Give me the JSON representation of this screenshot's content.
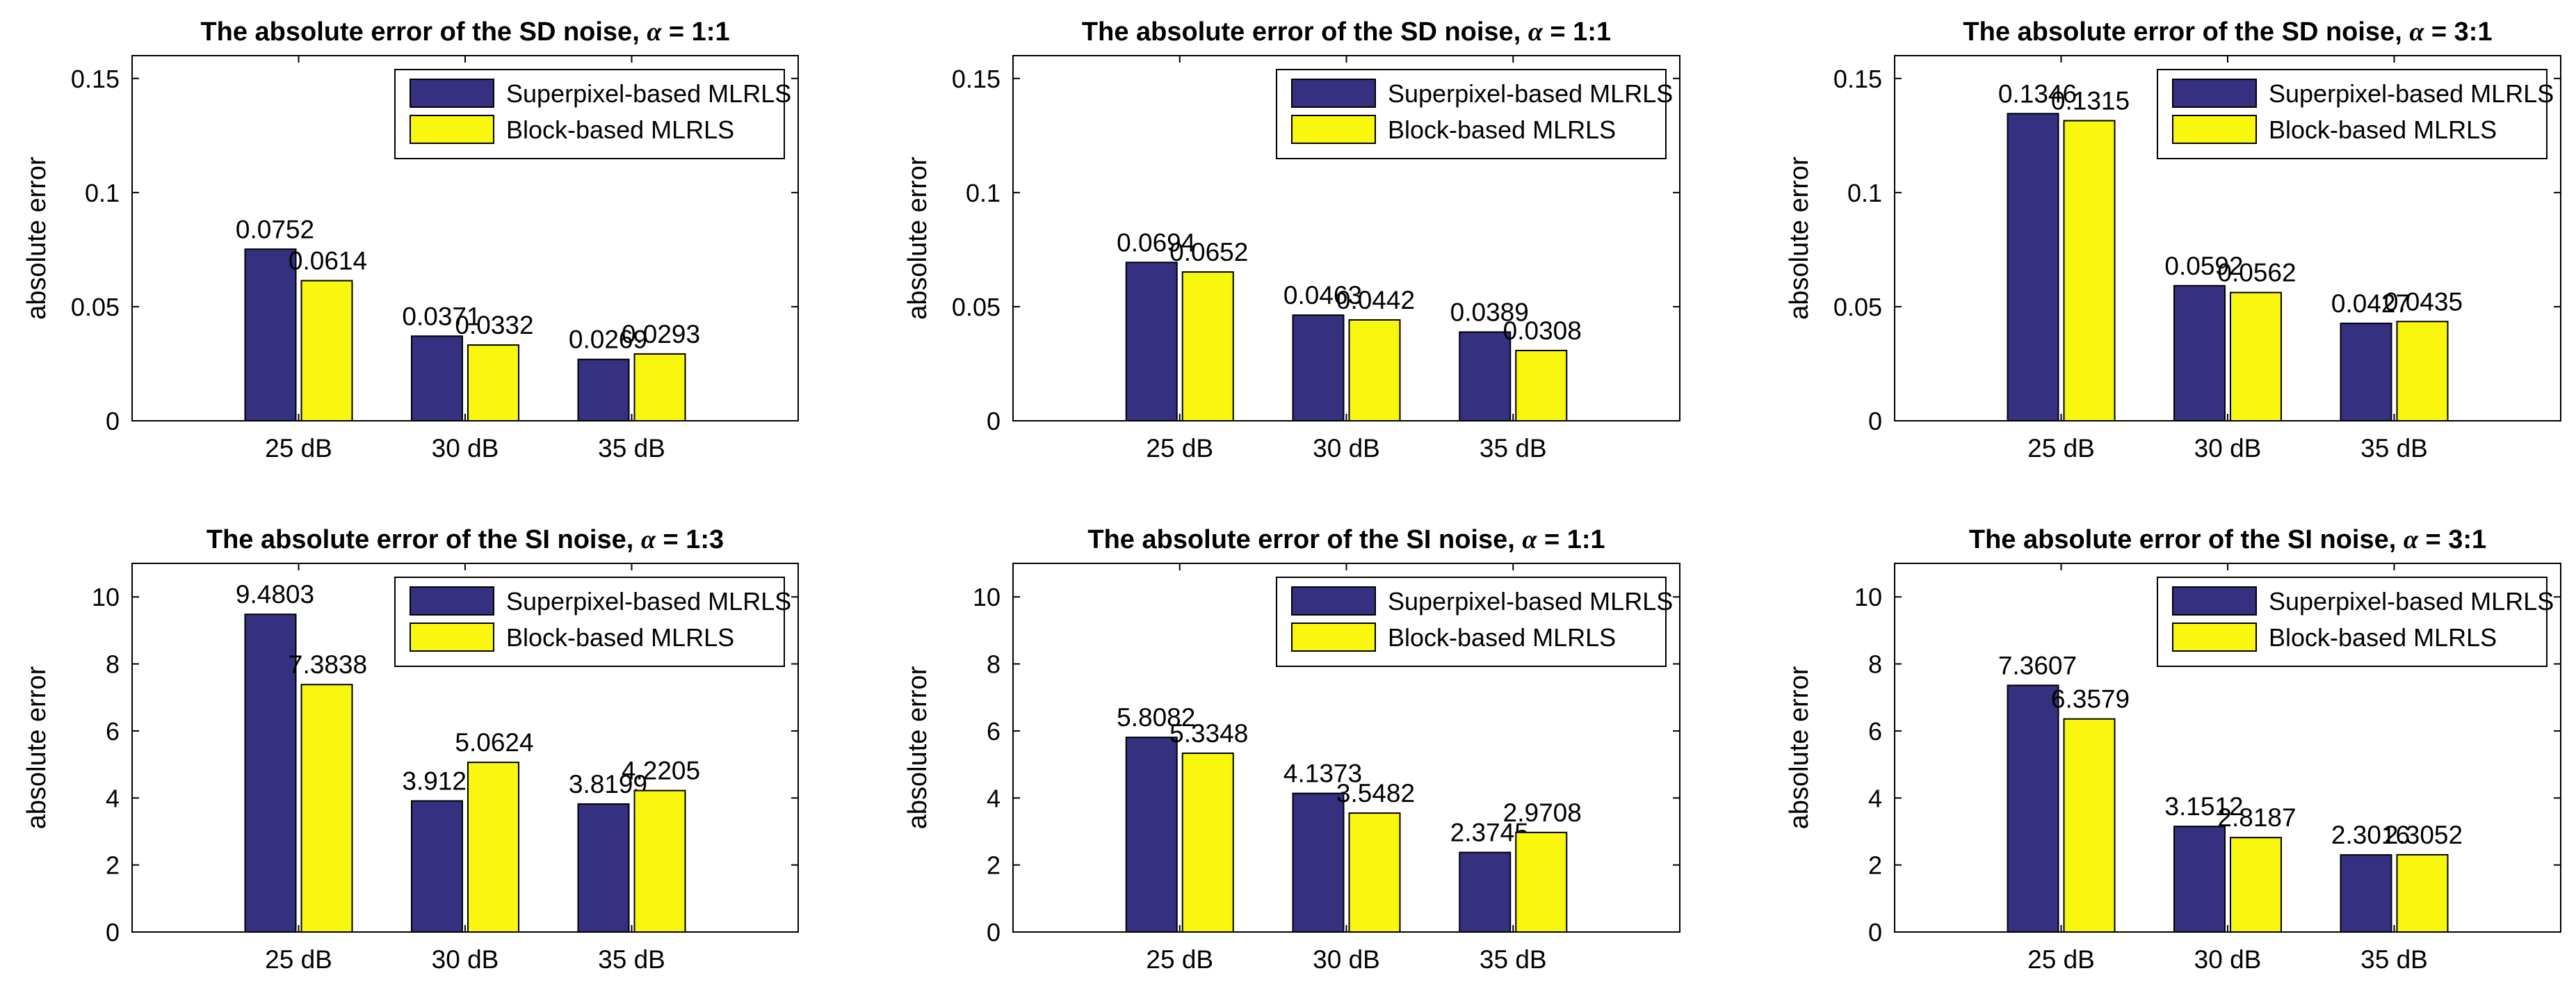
{
  "colors": {
    "superpixel": "#35307f",
    "block": "#f8f70d",
    "axis": "#000000",
    "background": "#ffffff"
  },
  "legend_labels": [
    "Superpixel-based MLRLS",
    "Block-based MLRLS"
  ],
  "chart_data": [
    {
      "type": "bar",
      "title_prefix": "The absolute error of the SD noise, ",
      "title_symbol": "α",
      "title_suffix": " = 1:1",
      "categories": [
        "25 dB",
        "30 dB",
        "35 dB"
      ],
      "series": [
        {
          "name": "Superpixel-based MLRLS",
          "values": [
            0.0752,
            0.0371,
            0.0269
          ],
          "labels": [
            "0.0752",
            "0.0371",
            "0.0269"
          ]
        },
        {
          "name": "Block-based MLRLS",
          "values": [
            0.0614,
            0.0332,
            0.0293
          ],
          "labels": [
            "0.0614",
            "0.0332",
            "0.0293"
          ]
        }
      ],
      "ylabel": "absolute error",
      "ylim": [
        0,
        0.16
      ],
      "yticks": [
        0,
        0.05,
        0.1,
        0.15
      ],
      "yticklabels": [
        "0",
        "0.05",
        "0.1",
        "0.15"
      ],
      "legend": "top-right"
    },
    {
      "type": "bar",
      "title_prefix": "The absolute error of the SD noise, ",
      "title_symbol": "α",
      "title_suffix": " = 1:1",
      "categories": [
        "25 dB",
        "30 dB",
        "35 dB"
      ],
      "series": [
        {
          "name": "Superpixel-based MLRLS",
          "values": [
            0.0694,
            0.0463,
            0.0389
          ],
          "labels": [
            "0.0694",
            "0.0463",
            "0.0389"
          ]
        },
        {
          "name": "Block-based MLRLS",
          "values": [
            0.0652,
            0.0442,
            0.0308
          ],
          "labels": [
            "0.0652",
            "0.0442",
            "0.0308"
          ]
        }
      ],
      "ylabel": "absolute error",
      "ylim": [
        0,
        0.16
      ],
      "yticks": [
        0,
        0.05,
        0.1,
        0.15
      ],
      "yticklabels": [
        "0",
        "0.05",
        "0.1",
        "0.15"
      ],
      "legend": "top-right"
    },
    {
      "type": "bar",
      "title_prefix": "The absolute error of the SD noise, ",
      "title_symbol": "α",
      "title_suffix": " = 3:1",
      "categories": [
        "25 dB",
        "30 dB",
        "35 dB"
      ],
      "series": [
        {
          "name": "Superpixel-based MLRLS",
          "values": [
            0.1346,
            0.0592,
            0.0427
          ],
          "labels": [
            "0.1346",
            "0.0592",
            "0.0427"
          ]
        },
        {
          "name": "Block-based MLRLS",
          "values": [
            0.1315,
            0.0562,
            0.0435
          ],
          "labels": [
            "0.1315",
            "0.0562",
            "0.0435"
          ]
        }
      ],
      "ylabel": "absolute error",
      "ylim": [
        0,
        0.16
      ],
      "yticks": [
        0,
        0.05,
        0.1,
        0.15
      ],
      "yticklabels": [
        "0",
        "0.05",
        "0.1",
        "0.15"
      ],
      "legend": "top-right"
    },
    {
      "type": "bar",
      "title_prefix": "The absolute error of the SI noise, ",
      "title_symbol": "α",
      "title_suffix": " = 1:3",
      "categories": [
        "25 dB",
        "30 dB",
        "35 dB"
      ],
      "series": [
        {
          "name": "Superpixel-based MLRLS",
          "values": [
            9.4803,
            3.9122,
            3.8199
          ],
          "labels": [
            "9.4803",
            "3.9122",
            "3.8199"
          ]
        },
        {
          "name": "Block-based MLRLS",
          "values": [
            7.3838,
            5.0624,
            4.2205
          ],
          "labels": [
            "7.3838",
            "5.0624",
            "4.2205"
          ]
        }
      ],
      "ylabel": "absolute error",
      "ylim": [
        0,
        11
      ],
      "yticks": [
        0,
        2,
        4,
        6,
        8,
        10
      ],
      "yticklabels": [
        "0",
        "2",
        "4",
        "6",
        "8",
        "10"
      ],
      "legend": "top-right"
    },
    {
      "type": "bar",
      "title_prefix": "The absolute error of the SI noise, ",
      "title_symbol": "α",
      "title_suffix": " = 1:1",
      "categories": [
        "25 dB",
        "30 dB",
        "35 dB"
      ],
      "series": [
        {
          "name": "Superpixel-based MLRLS",
          "values": [
            5.8082,
            4.1373,
            2.3745
          ],
          "labels": [
            "5.8082",
            "4.1373",
            "2.3745"
          ]
        },
        {
          "name": "Block-based MLRLS",
          "values": [
            5.3348,
            3.5482,
            2.9708
          ],
          "labels": [
            "5.3348",
            "3.5482",
            "2.9708"
          ]
        }
      ],
      "ylabel": "absolute error",
      "ylim": [
        0,
        11
      ],
      "yticks": [
        0,
        2,
        4,
        6,
        8,
        10
      ],
      "yticklabels": [
        "0",
        "2",
        "4",
        "6",
        "8",
        "10"
      ],
      "legend": "top-right"
    },
    {
      "type": "bar",
      "title_prefix": "The absolute error of the SI noise, ",
      "title_symbol": "α",
      "title_suffix": " = 3:1",
      "categories": [
        "25 dB",
        "30 dB",
        "35 dB"
      ],
      "series": [
        {
          "name": "Superpixel-based MLRLS",
          "values": [
            7.3607,
            3.1512,
            2.3016
          ],
          "labels": [
            "7.3607",
            "3.1512",
            "2.3016"
          ]
        },
        {
          "name": "Block-based MLRLS",
          "values": [
            6.3579,
            2.8187,
            2.3052
          ],
          "labels": [
            "6.3579",
            "2.8187",
            "2.3052"
          ]
        }
      ],
      "ylabel": "absolute error",
      "ylim": [
        0,
        11
      ],
      "yticks": [
        0,
        2,
        4,
        6,
        8,
        10
      ],
      "yticklabels": [
        "0",
        "2",
        "4",
        "6",
        "8",
        "10"
      ],
      "legend": "top-right"
    }
  ]
}
